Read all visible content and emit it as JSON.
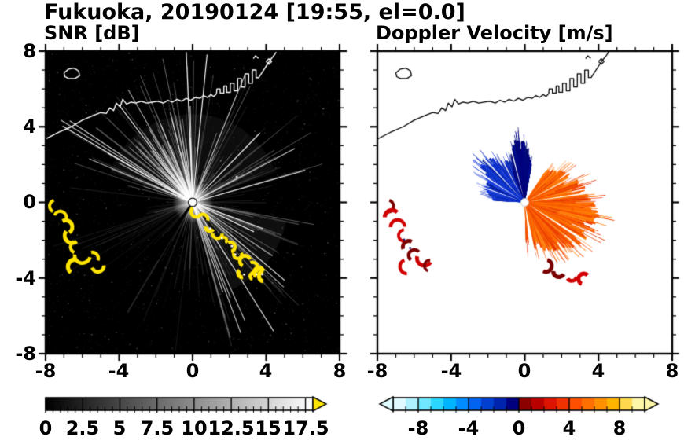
{
  "title": "Fukuoka, 20190124 [19:55, el=0.0]",
  "panels": {
    "snr": {
      "label": "SNR [dB]"
    },
    "doppler": {
      "label": "Doppler Velocity [m/s]"
    }
  },
  "axes": {
    "xticks": [
      "-8",
      "-4",
      "0",
      "4",
      "8"
    ],
    "yticks": [
      "8",
      "4",
      "0",
      "-4",
      "-8"
    ],
    "xrange": [
      -8,
      8
    ],
    "yrange": [
      -8,
      8
    ]
  },
  "colorbar_snr": {
    "min": 0,
    "max": 18,
    "tick_step": 0.5,
    "major_step": 2.5,
    "labels": [
      "0",
      "2.5",
      "5",
      "7.5",
      "10",
      "12.5",
      "15",
      "17.5"
    ],
    "start_color": "#000000",
    "end_color": "#ffffff",
    "overflow_color": "#ffe400"
  },
  "colorbar_doppler": {
    "min": -10,
    "max": 10,
    "tick_step": 1,
    "major_step": 4,
    "labels": [
      "-8",
      "-4",
      "0",
      "4",
      "8"
    ],
    "steps": [
      "#dffbff",
      "#aef2ff",
      "#6fe7ff",
      "#2bd7ff",
      "#00b4ff",
      "#008cff",
      "#0064f0",
      "#0040d0",
      "#0024ae",
      "#000080",
      "#8c0000",
      "#b80000",
      "#dc1400",
      "#f03200",
      "#ff5000",
      "#ff7000",
      "#ff9000",
      "#ffb400",
      "#ffd84e",
      "#fdf6a8"
    ]
  },
  "chart_data": {
    "type": "heatmap",
    "subtype": "radar-ppi-pair",
    "site": "Fukuoka",
    "date": "20190124",
    "time": "19:55",
    "elevation": "0.0",
    "x_range": [
      -8,
      8
    ],
    "y_range": [
      -8,
      8
    ],
    "snr": {
      "background": "#000000",
      "ray_color": "#ffffff",
      "upper_fan": {
        "a0": 15,
        "a1": 168
      },
      "lower_fan": {
        "a0": 285,
        "a1": 350
      },
      "bright_bundle": {
        "a0": 95,
        "a1": 140
      },
      "haze": [
        {
          "a0": 20,
          "a1": 160,
          "r": 4.8,
          "alpha": 0.05
        },
        {
          "a0": -65,
          "a1": -12,
          "r": 5.2,
          "alpha": 0.06
        }
      ],
      "shadow_rays": [
        {
          "angle": 233,
          "len": 4.3
        },
        {
          "angle": 238,
          "len": 3.6
        }
      ]
    },
    "doppler": {
      "cores": [
        {
          "a0": -80,
          "a1": 45,
          "r": 1.7,
          "color": "#ff7800"
        },
        {
          "a0": 98,
          "a1": 172,
          "r": 1.25,
          "color": "#0d2cc0"
        }
      ],
      "fans": [
        {
          "name": "receding-orange",
          "a0": -88,
          "a1": 55,
          "rmin": 0.5,
          "rmax": 4.3,
          "count": 700,
          "colors": [
            "#ff7f00",
            "#ff6f00",
            "#ff5c00",
            "#f34a00",
            "#e63600",
            "#ff8c1a"
          ]
        },
        {
          "name": "approaching-blue",
          "a0": 95,
          "a1": 177,
          "rmin": 0.5,
          "rmax": 3.3,
          "count": 450,
          "colors": [
            "#0a2fd0",
            "#0b28b4",
            "#1640dc",
            "#051d9a",
            "#2a4ce0"
          ]
        },
        {
          "name": "approaching-navy",
          "a0": 80,
          "a1": 112,
          "rmin": 0.8,
          "rmax": 3.7,
          "count": 220,
          "colors": [
            "#000080",
            "#000a6e",
            "#001090"
          ]
        }
      ],
      "gap_wedges": [
        {
          "a0": -84,
          "a1": -78
        },
        {
          "a0": -33,
          "a1": -31
        },
        {
          "a0": 7.5,
          "a1": 9
        },
        {
          "a0": 27,
          "a1": 28.5
        },
        {
          "a0": 104,
          "a1": 105.5
        },
        {
          "a0": 118,
          "a1": 119.5
        },
        {
          "a0": 133,
          "a1": 134.5
        },
        {
          "a0": 147,
          "a1": 148.5
        },
        {
          "a0": 160,
          "a1": 161.5
        }
      ]
    },
    "clutter": {
      "snr_color": "#ffe400",
      "doppler_color": "#d00000",
      "doppler_dark": "#7a0000",
      "navy_speck": "#001070",
      "sw_chain": [
        [
          -7.45,
          -0.2
        ],
        [
          -7.2,
          -0.8
        ],
        [
          -6.9,
          -1.3
        ],
        [
          -6.55,
          -1.75
        ],
        [
          -6.3,
          -2.35
        ],
        [
          -6.0,
          -2.8
        ],
        [
          -6.4,
          -3.4
        ],
        [
          -5.45,
          -2.95
        ],
        [
          -5.15,
          -3.35
        ]
      ],
      "se_chain": [
        [
          0.2,
          -0.5
        ],
        [
          0.55,
          -0.9
        ],
        [
          0.95,
          -1.3
        ],
        [
          1.35,
          -1.65
        ],
        [
          1.7,
          -2.0
        ],
        [
          2.05,
          -2.35
        ],
        [
          2.45,
          -2.75
        ],
        [
          2.85,
          -3.1
        ],
        [
          3.25,
          -3.45
        ],
        [
          3.6,
          -3.7
        ],
        [
          3.9,
          -3.9
        ],
        [
          3.3,
          -3.9
        ],
        [
          2.7,
          -3.75
        ]
      ],
      "bottom_patches": [
        [
          1.15,
          -3.35
        ],
        [
          1.85,
          -3.65
        ],
        [
          2.55,
          -3.9
        ],
        [
          3.2,
          -4.05
        ]
      ]
    },
    "coastline": [
      [
        [
          -8,
          3.35
        ],
        [
          -7.3,
          3.7
        ],
        [
          -6.6,
          4.0
        ],
        [
          -6.0,
          4.35
        ],
        [
          -5.4,
          4.6
        ],
        [
          -5.0,
          4.75
        ],
        [
          -4.7,
          4.7
        ],
        [
          -4.5,
          5.0
        ],
        [
          -4.3,
          4.85
        ],
        [
          -4.15,
          5.25
        ],
        [
          -3.95,
          5.05
        ],
        [
          -3.8,
          5.45
        ],
        [
          -3.6,
          5.2
        ],
        [
          -3.35,
          5.3
        ],
        [
          -3.1,
          5.25
        ],
        [
          -2.8,
          5.35
        ],
        [
          -2.5,
          5.25
        ],
        [
          -2.2,
          5.3
        ],
        [
          -1.9,
          5.35
        ],
        [
          -1.6,
          5.25
        ],
        [
          -1.35,
          5.4
        ],
        [
          -1.1,
          5.3
        ],
        [
          -0.85,
          5.45
        ],
        [
          -0.6,
          5.35
        ],
        [
          -0.35,
          5.5
        ],
        [
          -0.1,
          5.4
        ],
        [
          0.15,
          5.55
        ],
        [
          0.4,
          5.5
        ],
        [
          0.6,
          5.65
        ],
        [
          0.8,
          5.55
        ],
        [
          1.0,
          5.7
        ],
        [
          1.15,
          5.6
        ],
        [
          1.3,
          5.75
        ],
        [
          1.32,
          6.0
        ],
        [
          1.5,
          6.0
        ],
        [
          1.5,
          5.78
        ],
        [
          1.7,
          5.78
        ],
        [
          1.7,
          6.15
        ],
        [
          1.85,
          6.15
        ],
        [
          1.85,
          5.82
        ],
        [
          2.05,
          5.82
        ],
        [
          2.05,
          6.3
        ],
        [
          2.25,
          6.3
        ],
        [
          2.25,
          5.9
        ],
        [
          2.45,
          5.9
        ],
        [
          2.45,
          6.55
        ],
        [
          2.65,
          6.55
        ],
        [
          2.65,
          6.1
        ],
        [
          2.85,
          6.1
        ],
        [
          2.85,
          6.8
        ],
        [
          3.05,
          6.8
        ],
        [
          3.05,
          6.3
        ],
        [
          3.25,
          6.3
        ],
        [
          3.25,
          7.0
        ],
        [
          3.45,
          7.0
        ],
        [
          3.45,
          6.6
        ],
        [
          3.6,
          6.6
        ],
        [
          3.8,
          6.9
        ],
        [
          4.0,
          7.2
        ],
        [
          4.2,
          7.5
        ],
        [
          4.45,
          7.8
        ],
        [
          4.6,
          8.05
        ]
      ],
      [
        [
          -7.0,
          6.85
        ],
        [
          -6.75,
          7.05
        ],
        [
          -6.45,
          7.1
        ],
        [
          -6.2,
          6.95
        ],
        [
          -6.15,
          6.7
        ],
        [
          -6.4,
          6.55
        ],
        [
          -6.75,
          6.55
        ],
        [
          -6.95,
          6.65
        ],
        [
          -7.0,
          6.85
        ]
      ],
      [
        [
          4.0,
          7.45
        ],
        [
          4.15,
          7.6
        ],
        [
          4.3,
          7.45
        ],
        [
          4.15,
          7.3
        ],
        [
          4.0,
          7.45
        ]
      ],
      [
        [
          3.3,
          7.6
        ],
        [
          3.42,
          7.75
        ],
        [
          3.58,
          7.62
        ]
      ]
    ]
  }
}
